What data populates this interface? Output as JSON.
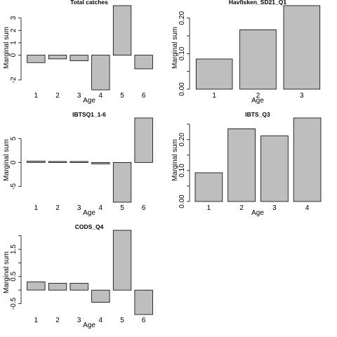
{
  "chart_data": [
    {
      "type": "bar",
      "title": "Total catches",
      "xlabel": "Age",
      "ylabel": "Marginal sum",
      "categories": [
        "1",
        "2",
        "3",
        "4",
        "5",
        "6"
      ],
      "values": [
        -0.6,
        -0.3,
        -0.45,
        -2.8,
        4.0,
        -1.1
      ],
      "ylim": [
        -2.8,
        4.0
      ],
      "yticks": [
        -2,
        0,
        1,
        2,
        3
      ],
      "ytick_labels": [
        "-2",
        "0",
        "1",
        "2",
        "3"
      ],
      "grid": false
    },
    {
      "type": "bar",
      "title": "Havfisken_SD21_Q1",
      "xlabel": "Age",
      "ylabel": "Marginal sum",
      "categories": [
        "1",
        "2",
        "3"
      ],
      "values": [
        0.085,
        0.167,
        0.235
      ],
      "ylim": [
        0.0,
        0.235
      ],
      "yticks": [
        0.0,
        0.05,
        0.1,
        0.15,
        0.2
      ],
      "ytick_labels": [
        "0.00",
        "",
        "0.10",
        "",
        "0.20"
      ],
      "grid": false
    },
    {
      "type": "bar",
      "title": "IBTSQ1_1-6",
      "xlabel": "Age",
      "ylabel": "Marginal sum",
      "categories": [
        "1",
        "2",
        "3",
        "4",
        "5",
        "6"
      ],
      "values": [
        0.3,
        0.2,
        0.2,
        -0.3,
        -8.3,
        9.3
      ],
      "ylim": [
        -8.3,
        9.3
      ],
      "yticks": [
        -5,
        0,
        5
      ],
      "ytick_labels": [
        "-5",
        "0",
        "5"
      ],
      "grid": false
    },
    {
      "type": "bar",
      "title": "IBTS_Q3",
      "xlabel": "Age",
      "ylabel": "Marginal sum",
      "categories": [
        "1",
        "2",
        "3",
        "4"
      ],
      "values": [
        0.093,
        0.235,
        0.212,
        0.27
      ],
      "ylim": [
        0.0,
        0.27
      ],
      "yticks": [
        0.0,
        0.05,
        0.1,
        0.15,
        0.2,
        0.25
      ],
      "ytick_labels": [
        "0.00",
        "",
        "0.10",
        "",
        "0.20",
        ""
      ],
      "grid": false
    },
    {
      "type": "bar",
      "title": "CODS_Q4",
      "xlabel": "Age",
      "ylabel": "Marginal sum",
      "categories": [
        "1",
        "2",
        "3",
        "4",
        "5",
        "6"
      ],
      "values": [
        0.3,
        0.25,
        0.25,
        -0.45,
        2.2,
        -0.9
      ],
      "ylim": [
        -0.9,
        2.2
      ],
      "yticks": [
        -0.5,
        0,
        0.5,
        1.0,
        1.5,
        2.0
      ],
      "ytick_labels": [
        "-0.5",
        "",
        "0.5",
        "",
        "1.5",
        ""
      ],
      "grid": false
    }
  ],
  "colors": {
    "bar_fill": "#bebebe",
    "bar_stroke": "#000000",
    "axis": "#000000"
  }
}
